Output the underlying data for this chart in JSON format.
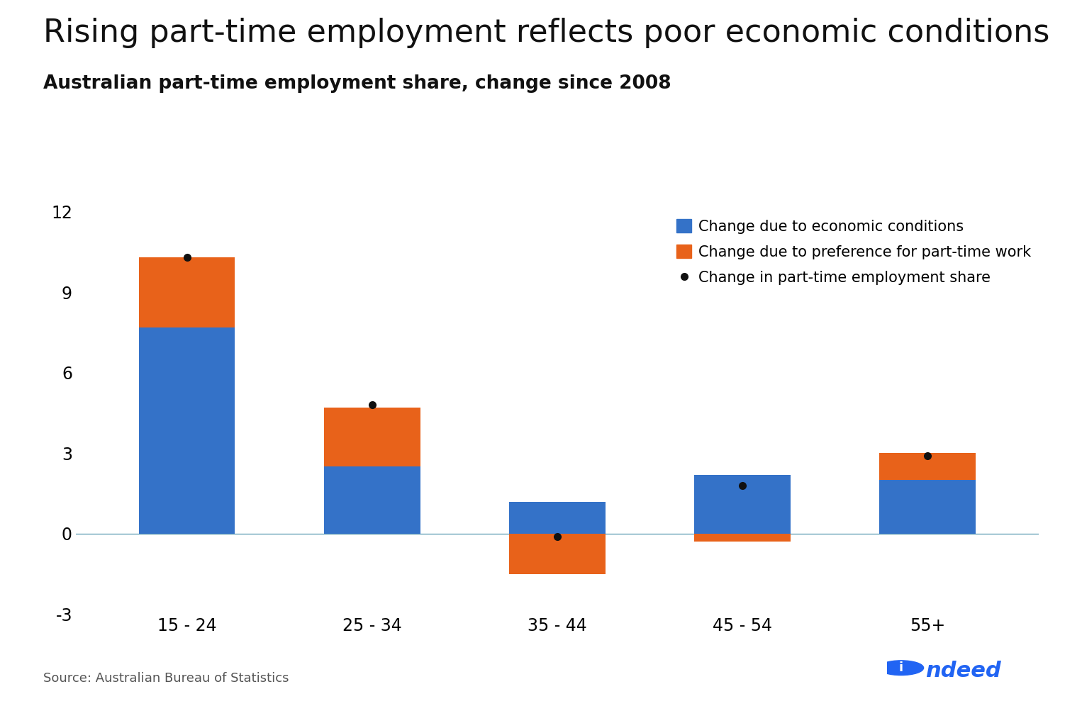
{
  "title": "Rising part-time employment reflects poor economic conditions",
  "subtitle": "Australian part-time employment share, change since 2008",
  "categories": [
    "15 - 24",
    "25 - 34",
    "35 - 44",
    "45 - 54",
    "55+"
  ],
  "blue_values": [
    7.7,
    2.5,
    1.2,
    2.2,
    2.0
  ],
  "orange_values": [
    2.6,
    2.2,
    -1.5,
    -0.3,
    1.0
  ],
  "dot_values": [
    10.3,
    4.8,
    -0.1,
    1.8,
    2.9
  ],
  "blue_color": "#3472C8",
  "orange_color": "#E8621A",
  "dot_color": "#111111",
  "ylim": [
    -3,
    12
  ],
  "yticks": [
    -3,
    0,
    3,
    6,
    9,
    12
  ],
  "source_text": "Source: Australian Bureau of Statistics",
  "legend_blue": "Change due to economic conditions",
  "legend_orange": "Change due to preference for part-time work",
  "legend_dot": "Change in part-time employment share",
  "background_color": "#ffffff",
  "title_fontsize": 32,
  "subtitle_fontsize": 19,
  "tick_fontsize": 17,
  "legend_fontsize": 15,
  "source_fontsize": 13,
  "bar_width": 0.52
}
